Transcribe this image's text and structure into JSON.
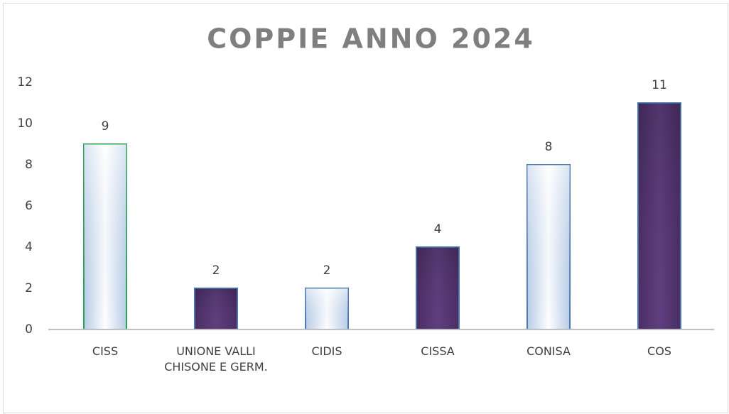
{
  "chart_data": {
    "type": "bar",
    "title": "COPPIE ANNO 2024",
    "categories": [
      "CISS",
      "UNIONE VALLI CHISONE E GERM.",
      "CIDIS",
      "CISSA",
      "CONISA",
      "COS"
    ],
    "values": [
      9,
      2,
      2,
      4,
      8,
      11
    ],
    "colors": [
      "#b7cbe6",
      "#5f3f7f",
      "#b7cbe6",
      "#5f3f7f",
      "#b7cbe6",
      "#5f3f7f"
    ],
    "border_colors": [
      "#2e9e5a",
      "#4a76b4",
      "#4a76b4",
      "#4a76b4",
      "#4a76b4",
      "#4a76b4"
    ],
    "ylim": [
      0,
      12
    ],
    "yticks": [
      0,
      2,
      4,
      6,
      8,
      10,
      12
    ],
    "grid": false
  }
}
